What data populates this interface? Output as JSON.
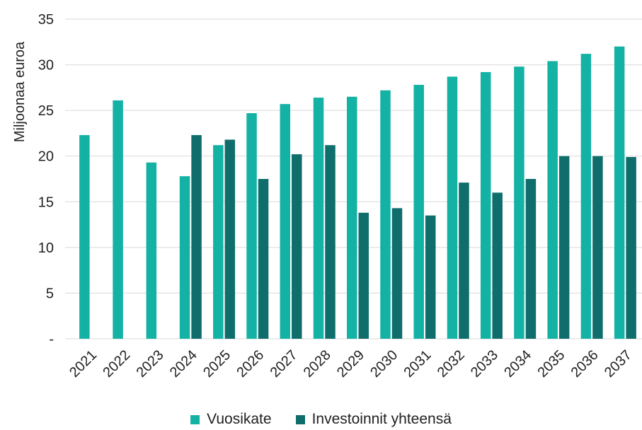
{
  "chart_data": {
    "type": "bar",
    "title": "",
    "xlabel": "",
    "ylabel": "Miljoonaa euroa",
    "ylim": [
      0,
      35
    ],
    "yticks": [
      0,
      5,
      10,
      15,
      20,
      25,
      30,
      35
    ],
    "ytick_labels": [
      "-",
      "5",
      "10",
      "15",
      "20",
      "25",
      "30",
      "35"
    ],
    "grid": true,
    "legend_position": "bottom",
    "categories": [
      "2021",
      "2022",
      "2023",
      "2024",
      "2025",
      "2026",
      "2027",
      "2028",
      "2029",
      "2030",
      "2031",
      "2032",
      "2033",
      "2034",
      "2035",
      "2036",
      "2037"
    ],
    "series": [
      {
        "name": "Vuosikate",
        "color": "#14b2a5",
        "values": [
          22.3,
          26.1,
          19.3,
          17.8,
          21.2,
          24.7,
          25.7,
          26.4,
          26.5,
          27.2,
          27.8,
          28.7,
          29.2,
          29.8,
          30.4,
          31.2,
          32.0
        ]
      },
      {
        "name": "Investoinnit yhteensä",
        "color": "#0f6e6b",
        "values": [
          null,
          null,
          null,
          22.3,
          21.8,
          17.5,
          20.2,
          21.2,
          13.8,
          14.3,
          13.5,
          17.1,
          16.0,
          17.5,
          20.0,
          20.0,
          19.9
        ]
      }
    ]
  }
}
